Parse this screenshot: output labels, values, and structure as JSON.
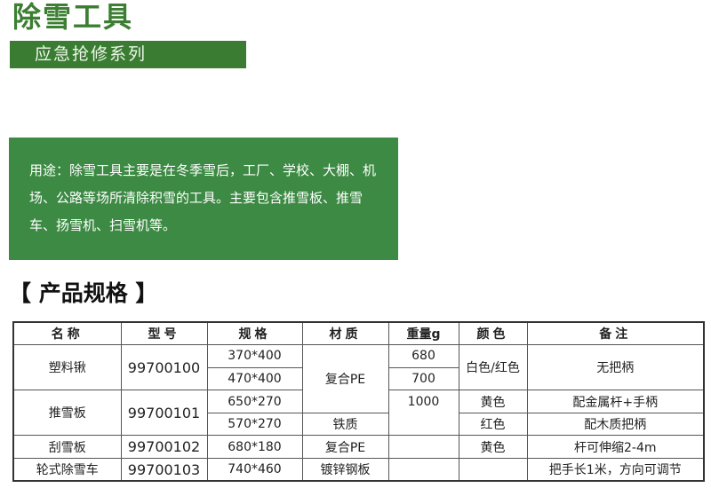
{
  "title": "除雪工具",
  "subtitle": "应急抢修系列",
  "usage": "用途：除雪工具主要是在冬季雪后，工厂、学校、大棚、机场、公路等场所清除积雪的工具。主要包含推雪板、推雪车、扬雪机、扫雪机等。",
  "spec_heading": "【 产品规格 】",
  "table": {
    "headers": [
      "名称",
      "型号",
      "规格",
      "材质",
      "重量g",
      "颜色",
      "备注"
    ],
    "rows": [
      {
        "name": "塑料锹",
        "model": "99700100",
        "spec": "370*400",
        "material": "复合PE",
        "weight": "680",
        "color": "白色/红色",
        "note": "无把柄"
      },
      {
        "spec": "470*400",
        "weight": "700"
      },
      {
        "name": "推雪板",
        "model": "99700101",
        "spec": "650*270",
        "weight": "1000",
        "color": "黄色",
        "note": "配金属杆+手柄"
      },
      {
        "spec": "570*270",
        "material": "铁质",
        "weight": "",
        "color": "红色",
        "note": "配木质把柄"
      },
      {
        "name": "刮雪板",
        "model": "99700102",
        "spec": "680*180",
        "material": "复合PE",
        "weight": "",
        "color": "黄色",
        "note": "杆可伸缩2-4m"
      },
      {
        "name": "轮式除雪车",
        "model": "99700103",
        "spec": "740*460",
        "material": "镀锌钢板",
        "weight": "",
        "color": "",
        "note": "把手长1米，方向可调节"
      }
    ]
  }
}
